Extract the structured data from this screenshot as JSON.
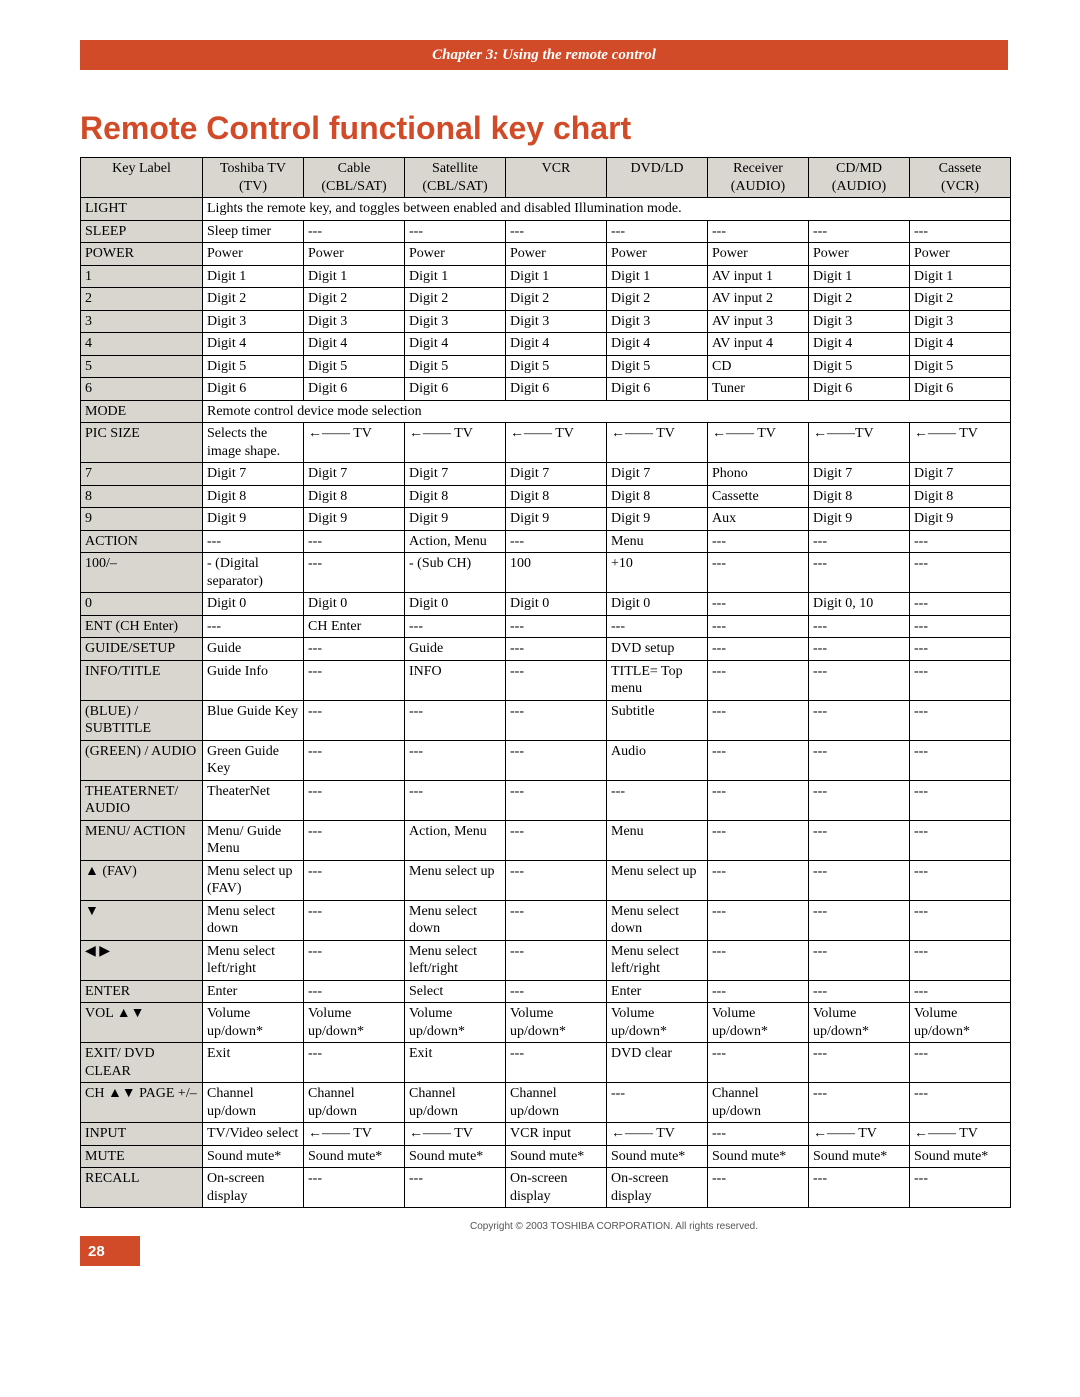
{
  "chapter_line": "Chapter 3: Using the remote control",
  "title": "Remote Control functional key chart",
  "page_number": "28",
  "copyright": "Copyright © 2003 TOSHIBA CORPORATION. All rights reserved.",
  "columns": [
    {
      "top": "Key Label",
      "sub": ""
    },
    {
      "top": "Toshiba TV",
      "sub": "(TV)"
    },
    {
      "top": "Cable",
      "sub": "(CBL/SAT)"
    },
    {
      "top": "Satellite",
      "sub": "(CBL/SAT)"
    },
    {
      "top": "VCR",
      "sub": ""
    },
    {
      "top": "DVD/LD",
      "sub": ""
    },
    {
      "top": "Receiver",
      "sub": "(AUDIO)"
    },
    {
      "top": "CD/MD",
      "sub": "(AUDIO)"
    },
    {
      "top": "Cassete",
      "sub": "(VCR)"
    }
  ],
  "rows": [
    {
      "type": "span",
      "label": "LIGHT",
      "text": "Lights the remote key, and toggles between enabled and disabled Illumination mode."
    },
    {
      "type": "row",
      "label": "SLEEP",
      "cells": [
        "Sleep timer",
        "---",
        "---",
        "---",
        "---",
        "---",
        "---",
        "---"
      ]
    },
    {
      "type": "row",
      "label": "POWER",
      "cells": [
        "Power",
        "Power",
        "Power",
        "Power",
        "Power",
        "Power",
        "Power",
        "Power"
      ]
    },
    {
      "type": "row",
      "label": "1",
      "cells": [
        "Digit 1",
        "Digit 1",
        "Digit 1",
        "Digit 1",
        "Digit 1",
        "AV input 1",
        "Digit 1",
        "Digit 1"
      ]
    },
    {
      "type": "row",
      "label": "2",
      "cells": [
        "Digit 2",
        "Digit 2",
        "Digit 2",
        "Digit 2",
        "Digit 2",
        "AV input 2",
        "Digit 2",
        "Digit 2"
      ]
    },
    {
      "type": "row",
      "label": "3",
      "cells": [
        "Digit 3",
        "Digit 3",
        "Digit 3",
        "Digit 3",
        "Digit 3",
        "AV input 3",
        "Digit 3",
        "Digit 3"
      ]
    },
    {
      "type": "row",
      "label": "4",
      "cells": [
        "Digit 4",
        "Digit 4",
        "Digit 4",
        "Digit 4",
        "Digit 4",
        "AV input 4",
        "Digit 4",
        "Digit 4"
      ]
    },
    {
      "type": "row",
      "label": "5",
      "cells": [
        "Digit 5",
        "Digit 5",
        "Digit 5",
        "Digit 5",
        "Digit 5",
        "CD",
        "Digit 5",
        "Digit 5"
      ]
    },
    {
      "type": "row",
      "label": "6",
      "cells": [
        "Digit 6",
        "Digit 6",
        "Digit 6",
        "Digit 6",
        "Digit 6",
        "Tuner",
        "Digit 6",
        "Digit 6"
      ]
    },
    {
      "type": "span",
      "label": "MODE",
      "text": "Remote control device mode selection"
    },
    {
      "type": "row",
      "label": "PIC SIZE",
      "cells": [
        "Selects the image shape.",
        "←—— TV",
        "←—— TV",
        "←—— TV",
        "←—— TV",
        "←—— TV",
        "←——TV",
        "←—— TV"
      ]
    },
    {
      "type": "row",
      "label": "7",
      "cells": [
        "Digit 7",
        "Digit 7",
        "Digit 7",
        "Digit 7",
        "Digit 7",
        "Phono",
        "Digit 7",
        "Digit 7"
      ]
    },
    {
      "type": "row",
      "label": "8",
      "cells": [
        "Digit 8",
        "Digit 8",
        "Digit 8",
        "Digit 8",
        "Digit 8",
        "Cassette",
        "Digit 8",
        "Digit 8"
      ]
    },
    {
      "type": "row",
      "label": "9",
      "cells": [
        "Digit 9",
        "Digit 9",
        "Digit 9",
        "Digit 9",
        "Digit 9",
        "Aux",
        "Digit 9",
        "Digit 9"
      ]
    },
    {
      "type": "row",
      "label": "ACTION",
      "cells": [
        "---",
        "---",
        "Action, Menu",
        "---",
        "Menu",
        "---",
        "---",
        "---"
      ]
    },
    {
      "type": "row",
      "label": "100/–",
      "cells": [
        "- (Digital separator)",
        "---",
        "- (Sub CH)",
        "100",
        "+10",
        "---",
        "---",
        "---"
      ]
    },
    {
      "type": "row",
      "label": "0",
      "cells": [
        "Digit 0",
        "Digit 0",
        "Digit 0",
        "Digit 0",
        "Digit 0",
        "---",
        "Digit 0, 10",
        "---"
      ]
    },
    {
      "type": "row",
      "label": "ENT (CH Enter)",
      "cells": [
        "---",
        "CH Enter",
        "---",
        "---",
        "---",
        "---",
        "---",
        "---"
      ]
    },
    {
      "type": "row",
      "label": "GUIDE/SETUP",
      "cells": [
        "Guide",
        "---",
        "Guide",
        "---",
        "DVD setup",
        "---",
        "---",
        "---"
      ]
    },
    {
      "type": "row",
      "label": "INFO/TITLE",
      "cells": [
        "Guide Info",
        "---",
        "INFO",
        "---",
        "TITLE= Top menu",
        "---",
        "---",
        "---"
      ]
    },
    {
      "type": "row",
      "label": "(BLUE) / SUBTITLE",
      "cells": [
        "Blue Guide Key",
        "---",
        "---",
        "---",
        "Subtitle",
        "---",
        "---",
        "---"
      ]
    },
    {
      "type": "row",
      "label": "(GREEN) / AUDIO",
      "cells": [
        "Green Guide Key",
        "---",
        "---",
        "---",
        "Audio",
        "---",
        "---",
        "---"
      ]
    },
    {
      "type": "row",
      "label": "THEATERNET/ AUDIO",
      "cells": [
        "TheaterNet",
        "---",
        "---",
        "---",
        "---",
        "---",
        "---",
        "---"
      ]
    },
    {
      "type": "row",
      "label": "MENU/ ACTION",
      "cells": [
        "Menu/ Guide Menu",
        "---",
        "Action, Menu",
        "---",
        "Menu",
        "---",
        "---",
        "---"
      ]
    },
    {
      "type": "row",
      "label": "▲ (FAV)",
      "cells": [
        "Menu select up (FAV)",
        "---",
        "Menu select up",
        "---",
        "Menu select up",
        "---",
        "---",
        "---"
      ]
    },
    {
      "type": "row",
      "label": "▼",
      "cells": [
        "Menu select down",
        "---",
        "Menu select down",
        "---",
        "Menu select down",
        "---",
        "---",
        "---"
      ]
    },
    {
      "type": "row",
      "label": "◀ ▶",
      "cells": [
        "Menu select left/right",
        "---",
        "Menu select left/right",
        "---",
        "Menu select left/right",
        "---",
        "---",
        "---"
      ]
    },
    {
      "type": "row",
      "label": "ENTER",
      "cells": [
        "Enter",
        "---",
        "Select",
        "---",
        "Enter",
        "---",
        "---",
        "---"
      ]
    },
    {
      "type": "row",
      "label": "VOL ▲▼",
      "cells": [
        "Volume up/down*",
        "Volume up/down*",
        "Volume up/down*",
        "Volume up/down*",
        "Volume up/down*",
        "Volume up/down*",
        "Volume up/down*",
        "Volume up/down*"
      ]
    },
    {
      "type": "row",
      "label": "EXIT/ DVD CLEAR",
      "cells": [
        "Exit",
        "---",
        "Exit",
        "---",
        "DVD clear",
        "---",
        "---",
        "---"
      ]
    },
    {
      "type": "row",
      "label": "CH ▲▼ PAGE +/–",
      "cells": [
        "Channel up/down",
        "Channel up/down",
        "Channel up/down",
        "Channel up/down",
        "---",
        "Channel up/down",
        "---",
        "---"
      ]
    },
    {
      "type": "row",
      "label": "INPUT",
      "cells": [
        "TV/Video select",
        "←—— TV",
        "←—— TV",
        "VCR input",
        "←—— TV",
        "---",
        "←—— TV",
        "←—— TV"
      ]
    },
    {
      "type": "row",
      "label": "MUTE",
      "cells": [
        "Sound mute*",
        "Sound mute*",
        "Sound mute*",
        "Sound mute*",
        "Sound mute*",
        "Sound mute*",
        "Sound mute*",
        "Sound mute*"
      ]
    },
    {
      "type": "row",
      "label": "RECALL",
      "cells": [
        "On-screen display",
        "---",
        "---",
        "On-screen display",
        "On-screen display",
        "---",
        "---",
        "---"
      ]
    }
  ]
}
